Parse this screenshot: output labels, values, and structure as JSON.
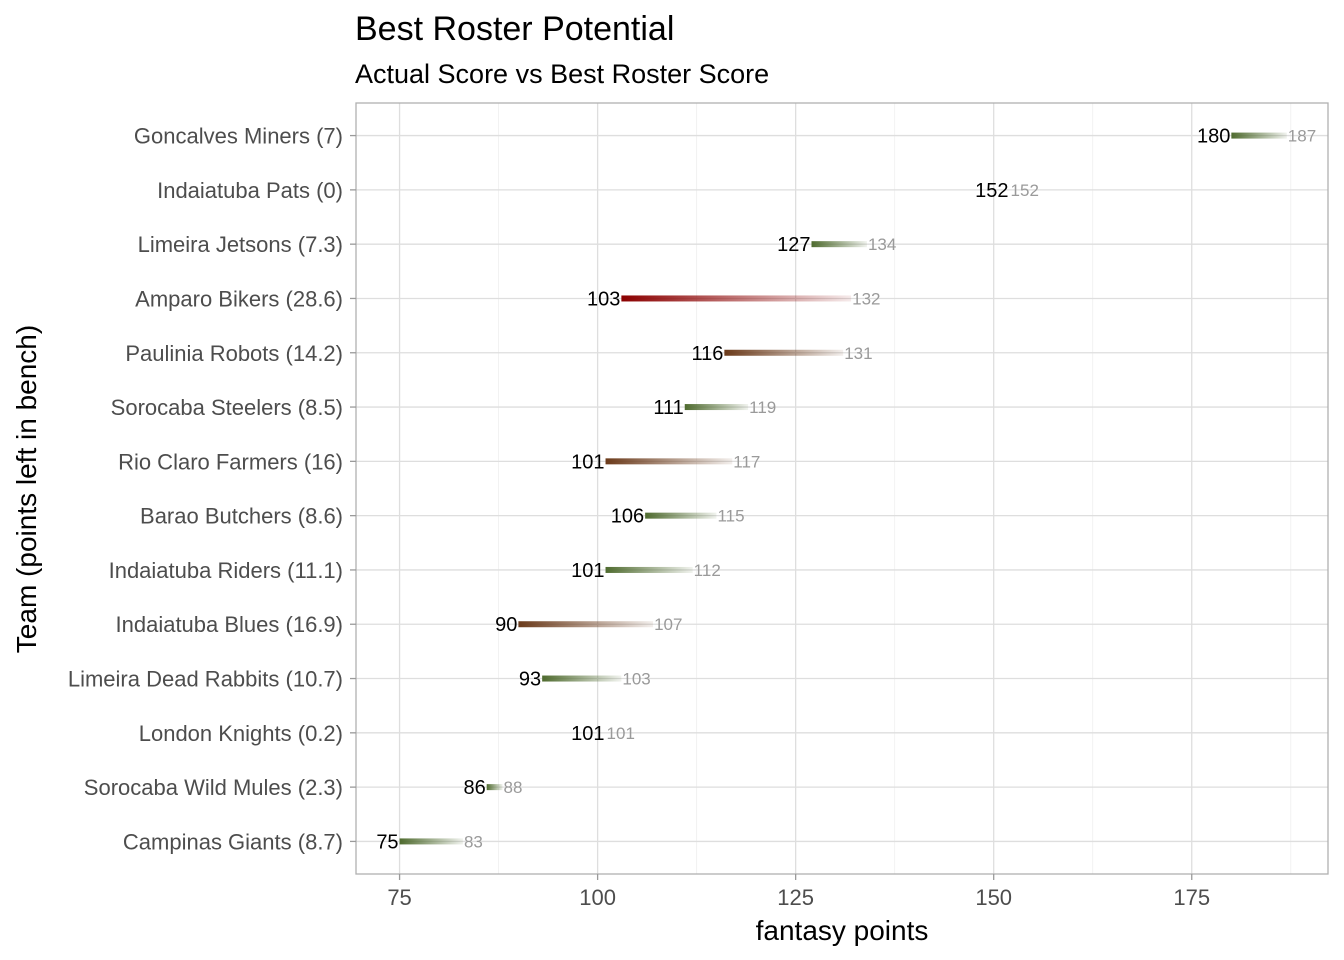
{
  "chart_data": {
    "type": "dumbbell",
    "title": "Best Roster Potential",
    "subtitle": "Actual Score vs Best Roster Score",
    "xlabel": "fantasy points",
    "ylabel": "Team (points left in bench)",
    "xlim": [
      69.5,
      192.2
    ],
    "xticks": [
      75,
      100,
      125,
      150,
      175
    ],
    "grid": true,
    "legend": "none",
    "colors": {
      "low_gap": "#4f6b2f",
      "high_gap": "#8b0000",
      "fade": "#ffffff"
    },
    "teams": [
      {
        "label": "Goncalves Miners (7)",
        "actual": 180,
        "best": 187
      },
      {
        "label": "Indaiatuba Pats (0)",
        "actual": 152,
        "best": 152
      },
      {
        "label": "Limeira Jetsons (7.3)",
        "actual": 127,
        "best": 134
      },
      {
        "label": "Amparo Bikers (28.6)",
        "actual": 103,
        "best": 132
      },
      {
        "label": "Paulinia Robots (14.2)",
        "actual": 116,
        "best": 131
      },
      {
        "label": "Sorocaba Steelers (8.5)",
        "actual": 111,
        "best": 119
      },
      {
        "label": "Rio Claro Farmers (16)",
        "actual": 101,
        "best": 117
      },
      {
        "label": "Barao Butchers (8.6)",
        "actual": 106,
        "best": 115
      },
      {
        "label": "Indaiatuba Riders (11.1)",
        "actual": 101,
        "best": 112
      },
      {
        "label": "Indaiatuba Blues (16.9)",
        "actual": 90,
        "best": 107
      },
      {
        "label": "Limeira Dead Rabbits (10.7)",
        "actual": 93,
        "best": 103
      },
      {
        "label": "London Knights (0.2)",
        "actual": 101,
        "best": 101
      },
      {
        "label": "Sorocaba Wild Mules (2.3)",
        "actual": 86,
        "best": 88
      },
      {
        "label": "Campinas Giants (8.7)",
        "actual": 75,
        "best": 83
      }
    ]
  }
}
